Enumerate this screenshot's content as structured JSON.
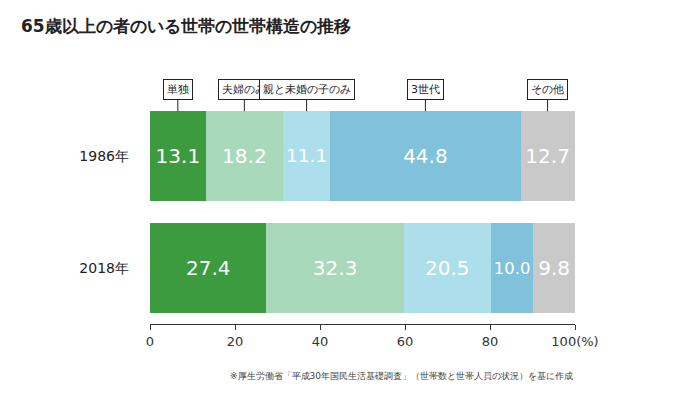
{
  "chart_data": {
    "type": "bar",
    "orientation": "horizontal",
    "stacked": true,
    "data_labels": true,
    "grid": false,
    "title": "65歳以上の者のいる世帯の世帯構造の推移",
    "annotations": [
      "※厚生労働省「平成30年国民生活基礎調査」（世帯数と世帯人員の状況）を基に作成"
    ],
    "categories": [
      "1986年",
      "2018年"
    ],
    "series": [
      {
        "name": "単独",
        "color": "#3d9b3f",
        "values": [
          13.1,
          27.4
        ]
      },
      {
        "name": "夫婦のみ",
        "color": "#a9d9bb",
        "values": [
          18.2,
          32.3
        ]
      },
      {
        "name": "親と未婚の子のみ",
        "color": "#acdeeb",
        "values": [
          11.1,
          20.5
        ]
      },
      {
        "name": "3世代",
        "color": "#80c2dc",
        "values": [
          44.8,
          10.0
        ],
        "value_labels": [
          "44.8",
          "10.0"
        ]
      },
      {
        "name": "その他",
        "color": "#c9c9c9",
        "values": [
          12.7,
          9.8
        ]
      }
    ],
    "xlim": [
      0,
      100
    ],
    "xticks": [
      0,
      20,
      40,
      60,
      80,
      {
        "value": 100,
        "label": "100(%)"
      }
    ]
  }
}
